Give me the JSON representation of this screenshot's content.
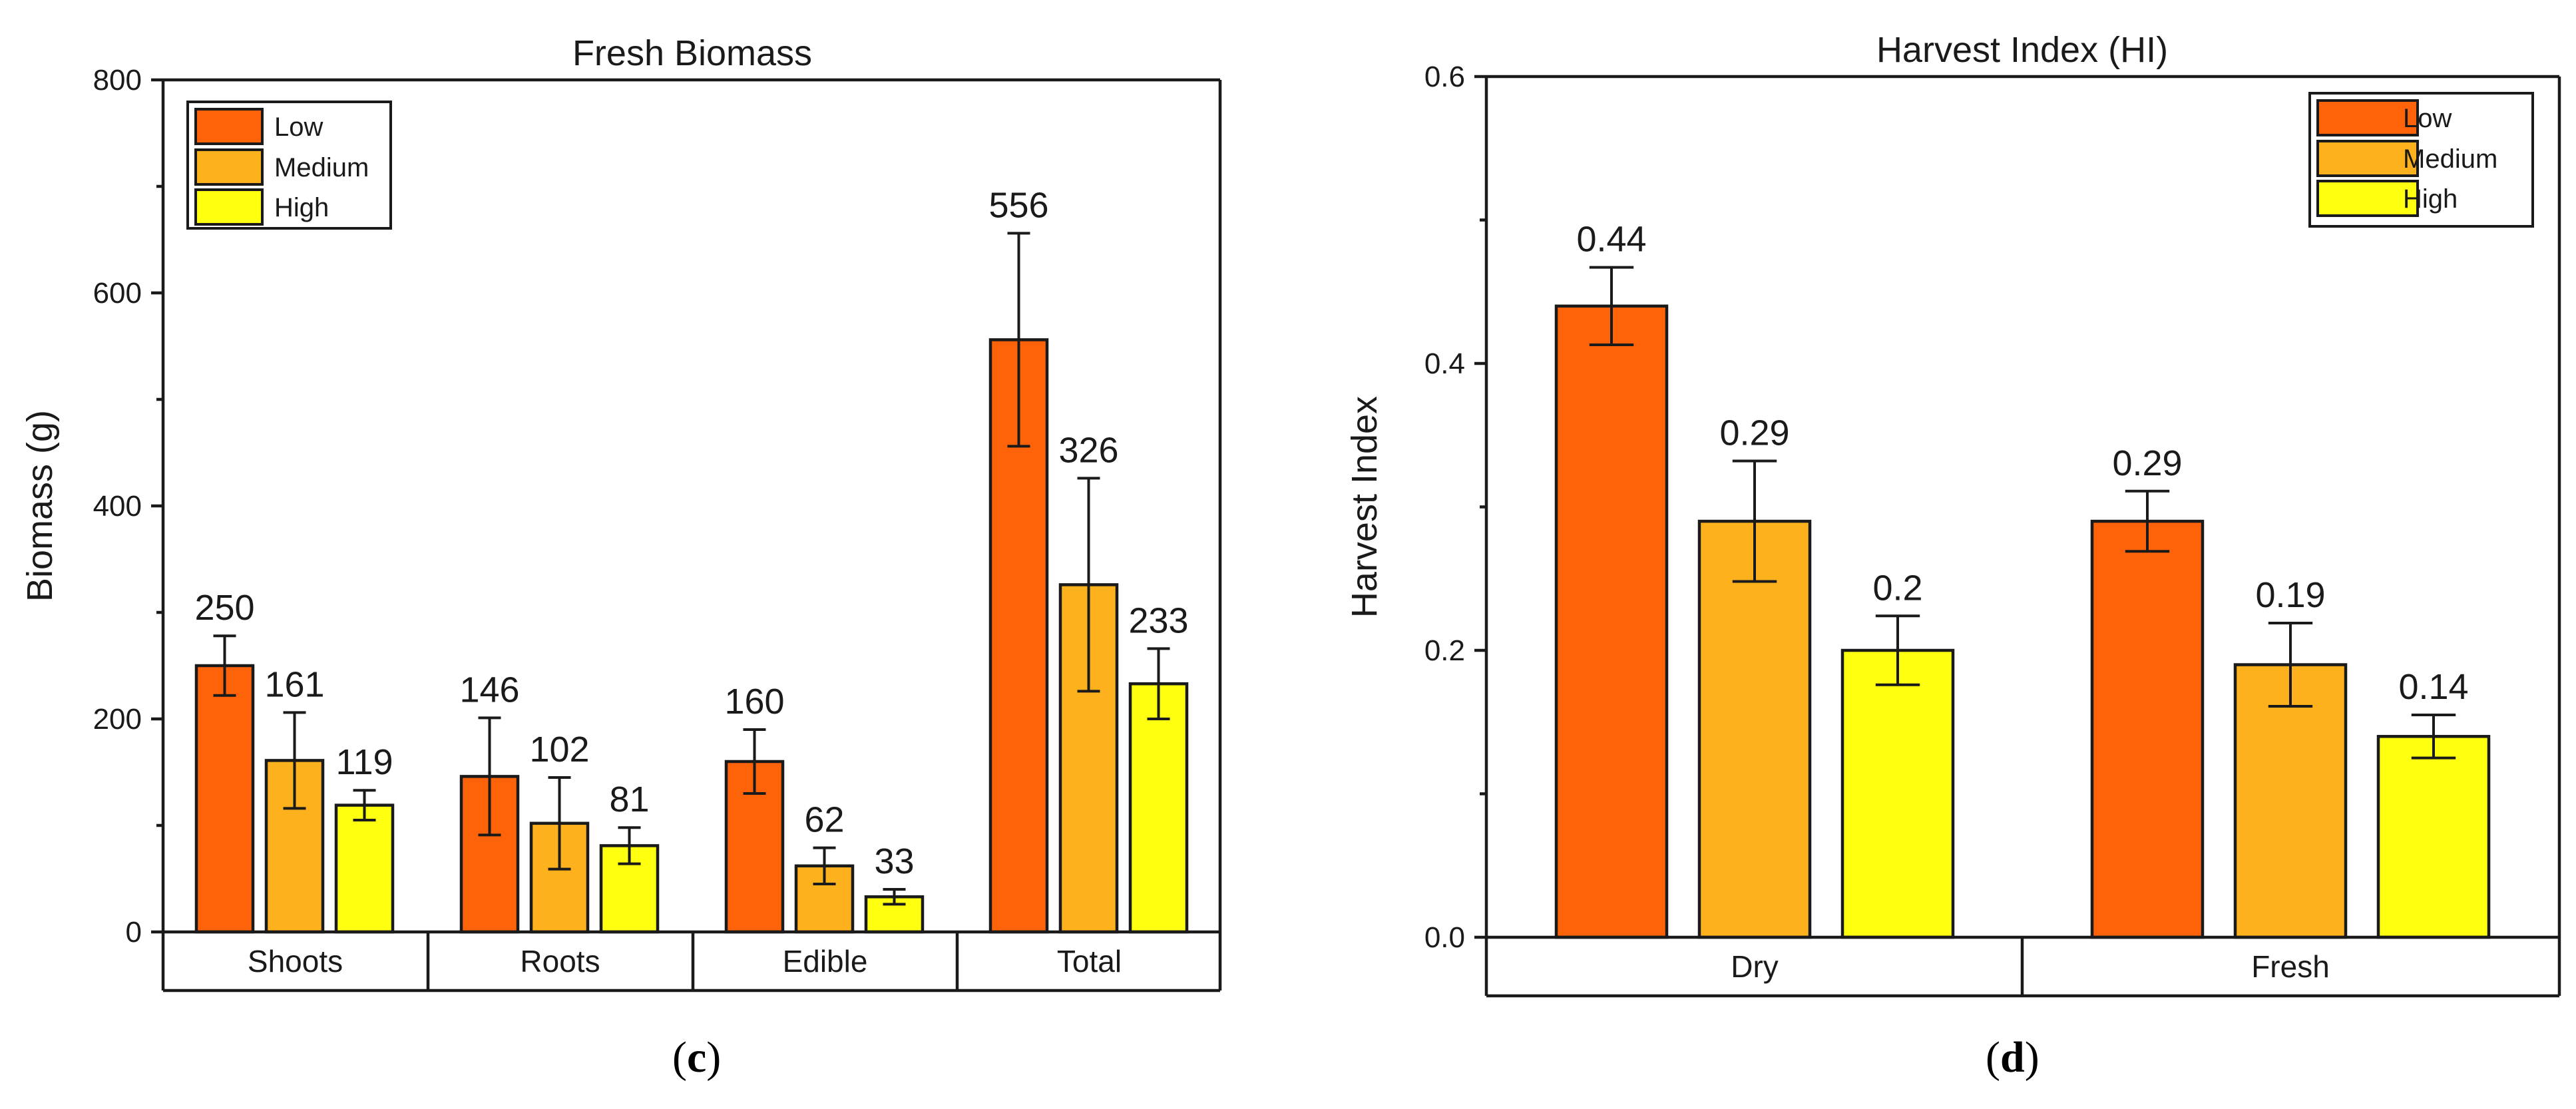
{
  "colors": {
    "Low": "#ff6309",
    "Medium": "#fdb21d",
    "High": "#ffff10",
    "axis": "#1a1a1a"
  },
  "chart_data": [
    {
      "type": "bar",
      "title": "Fresh Biomass",
      "ylabel": "Biomass (g)",
      "xlabel": "",
      "ylim": [
        0,
        800
      ],
      "yticks": [
        "0",
        "200",
        "400",
        "600",
        "800"
      ],
      "categories": [
        "Shoots",
        "Roots",
        "Edible",
        "Total"
      ],
      "legend_position": "top-left",
      "grid": false,
      "series": [
        {
          "name": "Low",
          "values": [
            250,
            146,
            160,
            556
          ],
          "errors": [
            28,
            55,
            30,
            100
          ],
          "labels": [
            "250",
            "146",
            "160",
            "556"
          ]
        },
        {
          "name": "Medium",
          "values": [
            161,
            102,
            62,
            326
          ],
          "errors": [
            45,
            43,
            17,
            100
          ],
          "labels": [
            "161",
            "102",
            "62",
            "326"
          ]
        },
        {
          "name": "High",
          "values": [
            119,
            81,
            33,
            233
          ],
          "errors": [
            14,
            17,
            7,
            33
          ],
          "labels": [
            "119",
            "81",
            "33",
            "233"
          ]
        }
      ],
      "panel_label": {
        "open": "(",
        "letter": "c",
        "close": ")"
      }
    },
    {
      "type": "bar",
      "title": "Harvest Index (HI)",
      "ylabel": "Harvest Index",
      "xlabel": "",
      "ylim": [
        0,
        0.6
      ],
      "yticks": [
        "0.0",
        "0.2",
        "0.4",
        "0.6"
      ],
      "categories": [
        "Dry",
        "Fresh"
      ],
      "legend_position": "top-right",
      "grid": false,
      "series": [
        {
          "name": "Low",
          "values": [
            0.44,
            0.29
          ],
          "errors": [
            0.027,
            0.021
          ],
          "labels": [
            "0.44",
            "0.29"
          ]
        },
        {
          "name": "Medium",
          "values": [
            0.29,
            0.19
          ],
          "errors": [
            0.042,
            0.029
          ],
          "labels": [
            "0.29",
            "0.19"
          ]
        },
        {
          "name": "High",
          "values": [
            0.2,
            0.14
          ],
          "errors": [
            0.024,
            0.015
          ],
          "labels": [
            "0.2",
            "0.14"
          ]
        }
      ],
      "panel_label": {
        "open": "(",
        "letter": "d",
        "close": ")"
      }
    }
  ]
}
